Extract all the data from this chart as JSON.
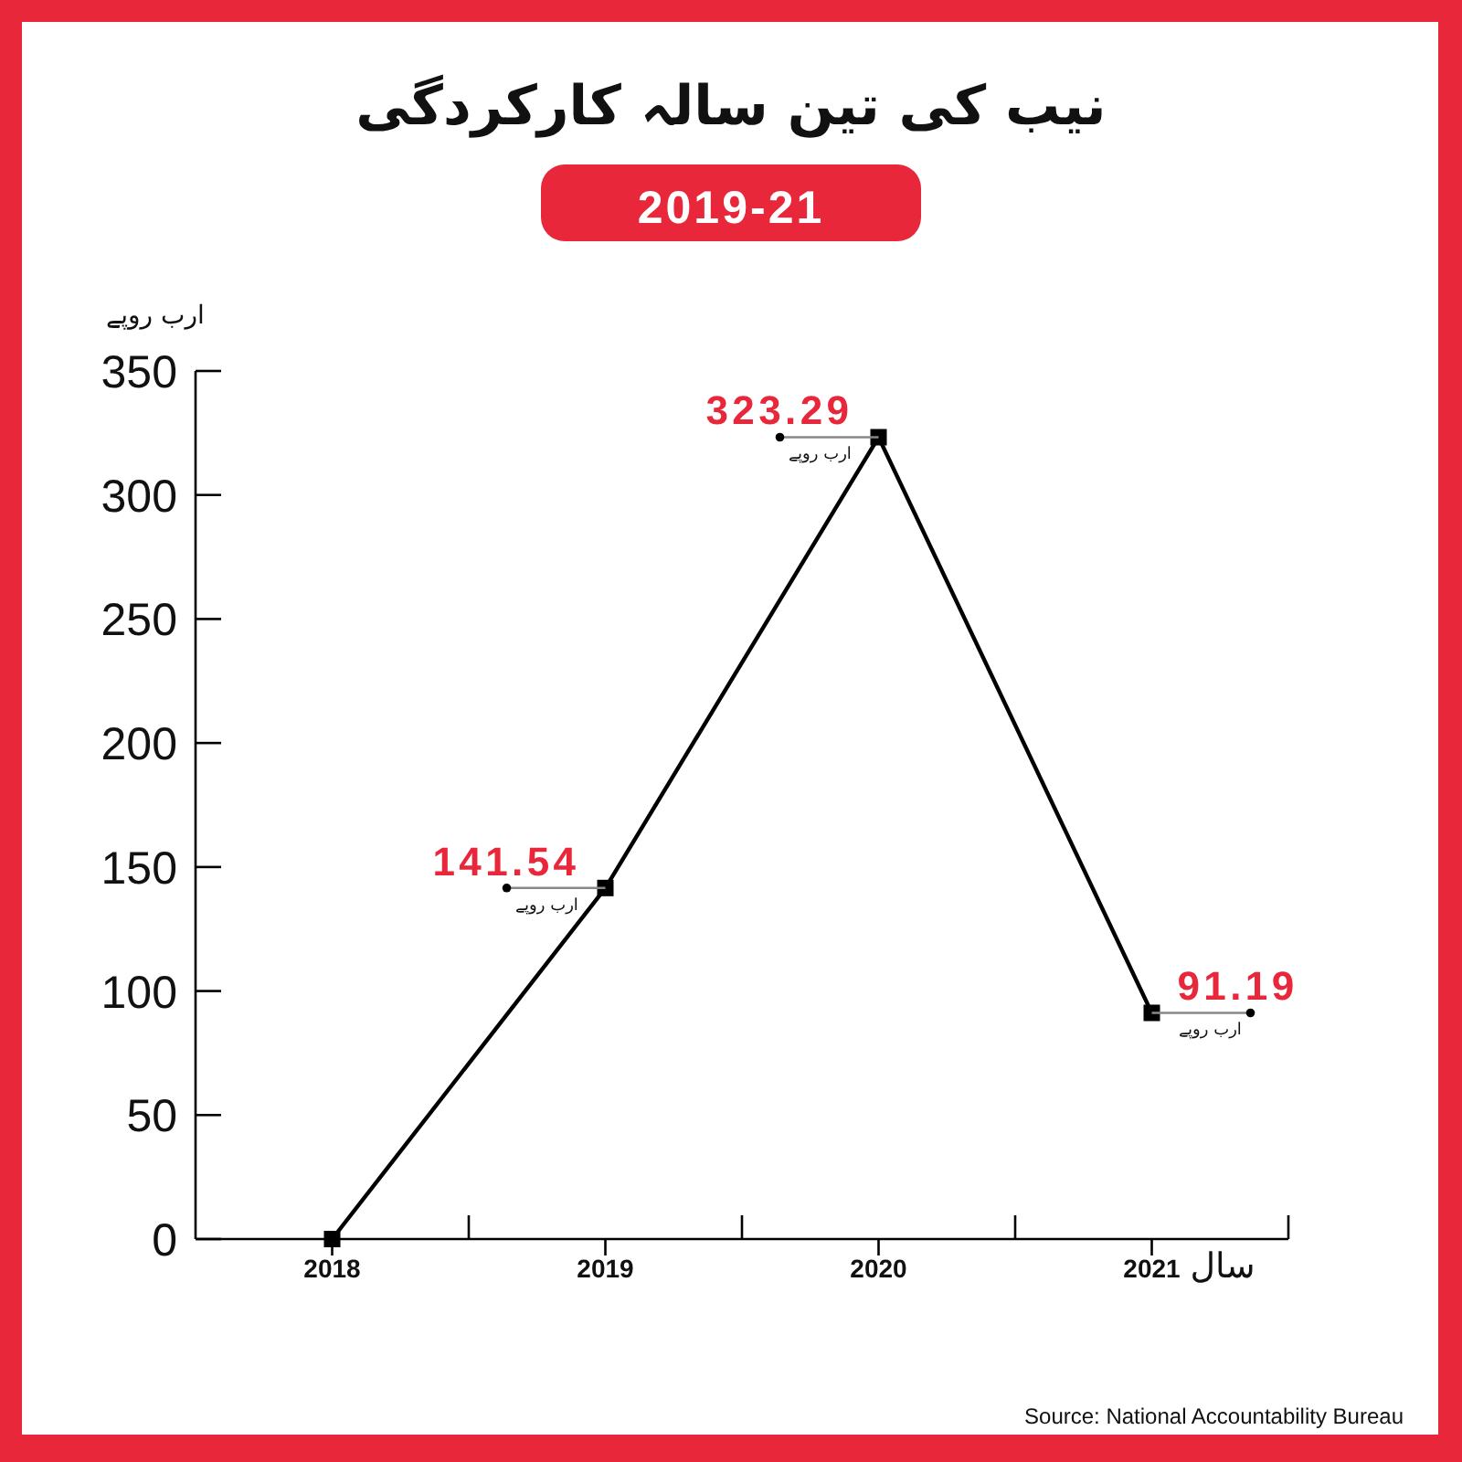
{
  "chart_data": {
    "type": "line",
    "title": "نیب کی تین سالہ کارکردگی",
    "subtitle": "2019-21",
    "ylabel": "ارب روپے",
    "xlabel": "سال",
    "categories": [
      "2018",
      "2019",
      "2020",
      "2021"
    ],
    "values": [
      0,
      141.54,
      323.29,
      91.19
    ],
    "color": "#000000",
    "marker": "square",
    "value_labels": [
      null,
      "141.54",
      "323.29",
      "91.19"
    ],
    "ylim": [
      0,
      350
    ],
    "yticks": [
      0,
      50,
      100,
      150,
      200,
      250,
      300,
      350
    ],
    "annotations": [
      {
        "text": "ارب روپے",
        "x": "2019",
        "y": 141.54
      },
      {
        "text": "ارب روپے",
        "x": "2020",
        "y": 323.29
      },
      {
        "text": "ارب روپے",
        "x": "2021",
        "y": 91.19
      },
      "Source: National Accountability Bureau"
    ]
  }
}
